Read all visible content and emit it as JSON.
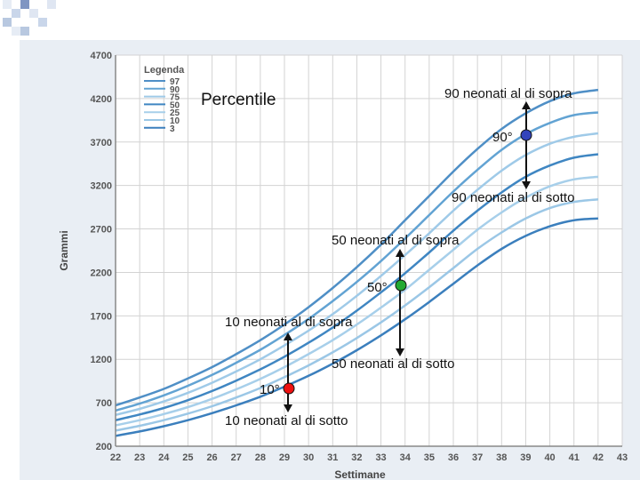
{
  "slide": {
    "title_text": "Percentile",
    "annotations": {
      "p90_above": "90 neonati al di sopra",
      "p90_marker": "90°",
      "p90_below": "90 neonati al di sotto",
      "p50_above": "50 neonati al di sopra",
      "p50_marker": "50°",
      "p10_above": "10 neonati al di sopra",
      "p50_below": "50 neonati al di sotto",
      "p10_marker": "10°",
      "p10_below": "10 neonati al di sotto"
    },
    "marker_colors": {
      "p90": "#3344bb",
      "p50": "#22aa33",
      "p10": "#ee1111"
    }
  },
  "chart_data": {
    "type": "line",
    "xlabel": "Settimane",
    "ylabel": "Grammi",
    "xlim": [
      22,
      43
    ],
    "ylim": [
      200,
      4700
    ],
    "x_ticks": [
      22,
      23,
      24,
      25,
      26,
      27,
      28,
      29,
      30,
      31,
      32,
      33,
      34,
      35,
      36,
      37,
      38,
      39,
      40,
      41,
      42,
      43
    ],
    "y_ticks": [
      200,
      700,
      1200,
      1700,
      2200,
      2700,
      3200,
      3700,
      4200,
      4700
    ],
    "grid": true,
    "legend": {
      "title": "Legenda",
      "position": "top-left"
    },
    "x": [
      22,
      23,
      24,
      25,
      26,
      27,
      28,
      29,
      30,
      31,
      32,
      33,
      34,
      35,
      36,
      37,
      38,
      39,
      40,
      41,
      42
    ],
    "series": [
      {
        "name": "97",
        "color": "#4f8fc6",
        "values": [
          670,
          760,
          860,
          980,
          1110,
          1260,
          1420,
          1600,
          1800,
          2020,
          2260,
          2520,
          2800,
          3080,
          3360,
          3620,
          3850,
          4030,
          4170,
          4260,
          4300
        ]
      },
      {
        "name": "90",
        "color": "#62a3d3",
        "values": [
          610,
          690,
          785,
          895,
          1020,
          1160,
          1310,
          1480,
          1665,
          1870,
          2090,
          2330,
          2590,
          2860,
          3130,
          3380,
          3610,
          3790,
          3920,
          4010,
          4040
        ]
      },
      {
        "name": "75",
        "color": "#9fcae8",
        "values": [
          560,
          630,
          715,
          815,
          930,
          1060,
          1200,
          1360,
          1530,
          1720,
          1930,
          2160,
          2400,
          2650,
          2910,
          3150,
          3370,
          3550,
          3680,
          3760,
          3800
        ]
      },
      {
        "name": "50",
        "color": "#3f86c2",
        "values": [
          500,
          565,
          640,
          730,
          835,
          955,
          1085,
          1230,
          1390,
          1565,
          1760,
          1970,
          2190,
          2430,
          2680,
          2910,
          3120,
          3300,
          3430,
          3520,
          3560
        ]
      },
      {
        "name": "25",
        "color": "#a7cfea",
        "values": [
          440,
          500,
          570,
          650,
          745,
          855,
          975,
          1110,
          1260,
          1420,
          1600,
          1795,
          2000,
          2230,
          2460,
          2690,
          2890,
          3060,
          3190,
          3270,
          3300
        ]
      },
      {
        "name": "10",
        "color": "#9bc7e6",
        "values": [
          380,
          435,
          500,
          575,
          660,
          760,
          870,
          995,
          1130,
          1280,
          1445,
          1625,
          1820,
          2030,
          2250,
          2470,
          2660,
          2820,
          2940,
          3010,
          3040
        ]
      },
      {
        "name": "3",
        "color": "#3b7fbd",
        "values": [
          320,
          370,
          430,
          500,
          580,
          670,
          770,
          885,
          1010,
          1150,
          1305,
          1475,
          1660,
          1860,
          2070,
          2280,
          2470,
          2620,
          2730,
          2800,
          2820
        ]
      }
    ]
  }
}
